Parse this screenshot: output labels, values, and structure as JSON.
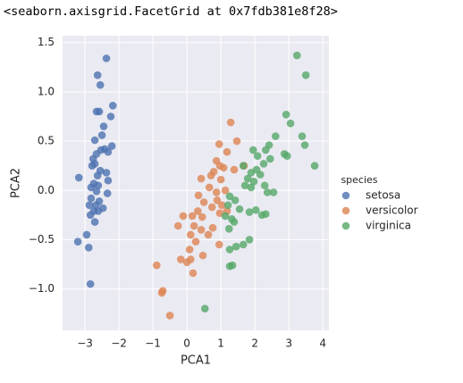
{
  "notebook_output": "<seaborn.axisgrid.FacetGrid at 0x7fdb381e8f28>",
  "chart_data": {
    "type": "scatter",
    "x_label": "PCA1",
    "y_label": "PCA2",
    "xlim": [
      -3.66,
      4.18
    ],
    "ylim": [
      -1.42,
      1.57
    ],
    "xticks": [
      {
        "value": -3,
        "label": "−3"
      },
      {
        "value": -2,
        "label": "−2"
      },
      {
        "value": -1,
        "label": "−1"
      },
      0,
      1,
      2,
      3,
      4
    ],
    "yticks": [
      {
        "value": -1.0,
        "label": "−1.0"
      },
      {
        "value": -0.5,
        "label": "−0.5"
      },
      {
        "value": 0.0,
        "label": "0.0"
      },
      {
        "value": 0.5,
        "label": "0.5"
      },
      {
        "value": 1.0,
        "label": "1.0"
      },
      {
        "value": 1.5,
        "label": "1.5"
      }
    ],
    "grid": true,
    "legend_title": "species",
    "legend_position": "right",
    "series": [
      {
        "name": "setosa",
        "color": "#4c72b0",
        "x": [
          -2.37,
          -2.63,
          -2.55,
          -2.66,
          -2.58,
          -2.24,
          -2.18,
          -2.45,
          -2.5,
          -2.71,
          -2.21,
          -2.42,
          -2.53,
          -2.32,
          -2.66,
          -2.76,
          -2.71,
          -2.79,
          -3.18,
          -2.55,
          -2.37,
          -2.63,
          -2.32,
          -2.74,
          -2.61,
          -2.82,
          -2.66,
          -2.34,
          -2.82,
          -2.58,
          -2.87,
          -2.68,
          -2.47,
          -2.74,
          -2.61,
          -2.84,
          -2.71,
          -2.95,
          -3.21,
          -2.89,
          -2.84
        ],
        "values": [
          1.34,
          1.17,
          1.07,
          0.8,
          0.8,
          0.75,
          0.86,
          0.65,
          0.56,
          0.51,
          0.45,
          0.42,
          0.41,
          0.39,
          0.37,
          0.32,
          0.27,
          0.25,
          0.13,
          0.2,
          0.18,
          0.15,
          0.1,
          0.07,
          0.05,
          0.03,
          -0.01,
          -0.03,
          -0.08,
          -0.11,
          -0.15,
          -0.15,
          -0.18,
          -0.21,
          -0.21,
          -0.25,
          -0.32,
          -0.45,
          -0.52,
          -0.58,
          -0.95
        ]
      },
      {
        "name": "versicolor",
        "color": "#dd8452",
        "x": [
          1.29,
          0.95,
          1.47,
          1.18,
          0.87,
          0.97,
          0.79,
          1.08,
          1.39,
          1.68,
          0.71,
          0.42,
          1.0,
          0.66,
          0.87,
          1.13,
          0.34,
          0.89,
          0.5,
          1.03,
          0.74,
          0.32,
          -0.11,
          0.16,
          0.45,
          0.97,
          1.18,
          -0.26,
          0.21,
          0.76,
          0.42,
          0.11,
          0.63,
          0.95,
          0.26,
          0.08,
          -0.18,
          0,
          0.11,
          0.47,
          0.18,
          -0.89,
          -0.71,
          -0.74,
          -0.5
        ],
        "values": [
          0.69,
          0.47,
          0.5,
          0.39,
          0.3,
          0.25,
          0.19,
          0.23,
          0.21,
          0.25,
          0.15,
          0.12,
          0.11,
          0.03,
          -0.02,
          0.0,
          -0.05,
          -0.1,
          -0.12,
          -0.15,
          -0.17,
          -0.21,
          -0.26,
          -0.26,
          -0.27,
          -0.23,
          -0.21,
          -0.36,
          -0.36,
          -0.38,
          -0.4,
          -0.45,
          -0.45,
          -0.55,
          -0.52,
          -0.6,
          -0.7,
          -0.73,
          -0.7,
          -0.66,
          -0.84,
          -0.76,
          -1.02,
          -1.04,
          -1.27
        ]
      },
      {
        "name": "virginica",
        "color": "#55a868",
        "x": [
          3.24,
          3.5,
          2.92,
          3.05,
          3.39,
          3.47,
          2.61,
          2.42,
          2.32,
          1.95,
          2.08,
          2.45,
          2.87,
          2.95,
          3.76,
          1.66,
          2.26,
          2.05,
          1.89,
          2.16,
          1.79,
          1.97,
          2.29,
          1.71,
          1.89,
          2.55,
          2.37,
          1.26,
          1.42,
          1.21,
          1.55,
          1.84,
          2.03,
          2.32,
          2.21,
          1.13,
          1.32,
          1.39,
          1.24,
          1.45,
          1.84,
          1.66,
          1.26,
          1.34,
          1.26,
          0.53
        ],
        "values": [
          1.37,
          1.17,
          0.77,
          0.68,
          0.55,
          0.46,
          0.55,
          0.46,
          0.41,
          0.41,
          0.35,
          0.32,
          0.37,
          0.35,
          0.25,
          0.25,
          0.27,
          0.21,
          0.18,
          0.16,
          0.12,
          0.09,
          0.05,
          0.05,
          0.03,
          -0.02,
          -0.02,
          -0.06,
          -0.1,
          -0.15,
          -0.19,
          -0.22,
          -0.2,
          -0.24,
          -0.25,
          -0.26,
          -0.29,
          -0.32,
          -0.39,
          -0.57,
          -0.5,
          -0.55,
          -0.6,
          -0.76,
          -0.77,
          -1.2
        ]
      }
    ]
  }
}
